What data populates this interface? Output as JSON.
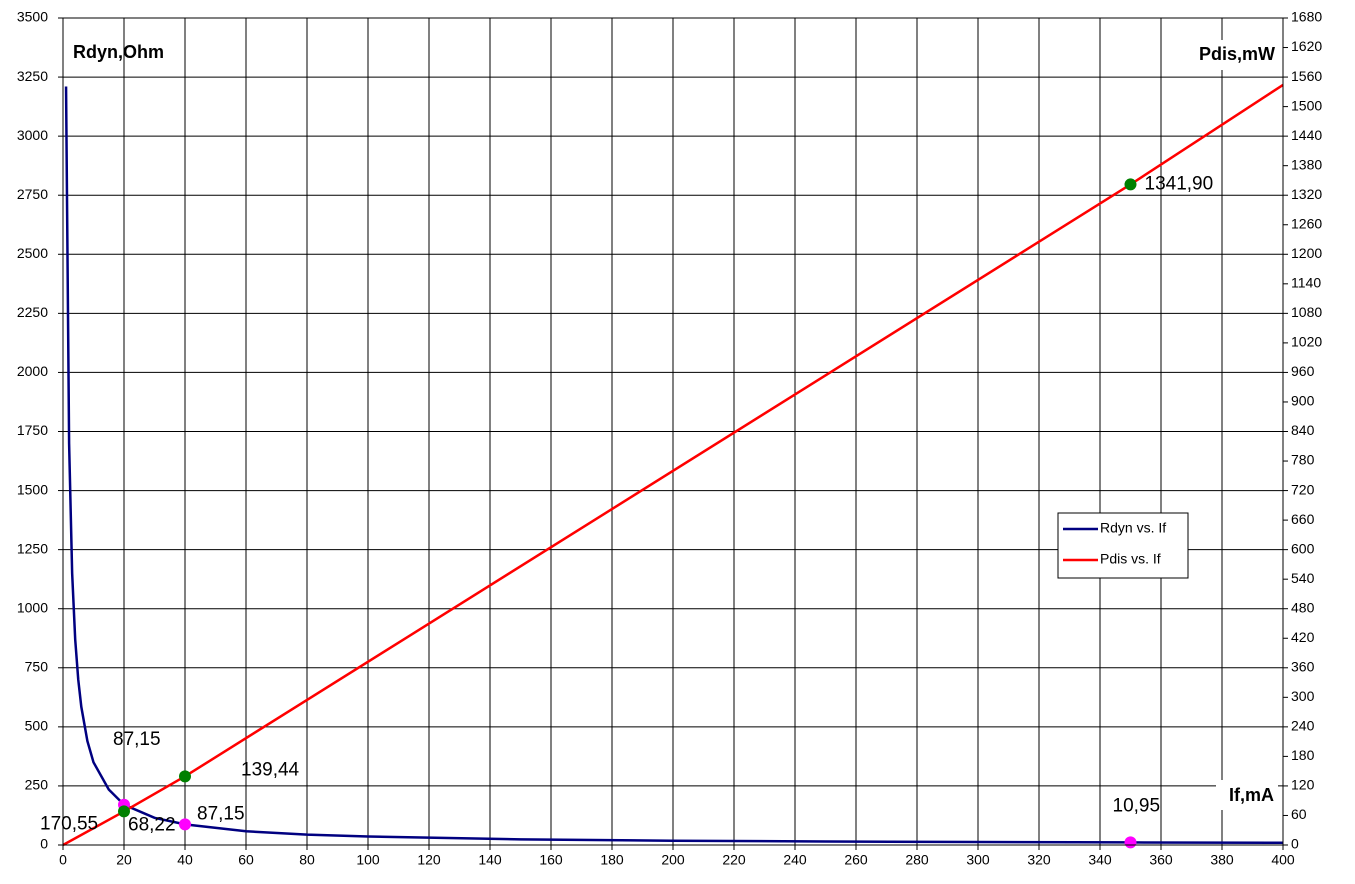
{
  "chart_data": {
    "type": "line",
    "x_label": "If,mA",
    "y_label": "Rdyn,Ohm",
    "y2_label": "Pdis,mW",
    "xlim": [
      0,
      400
    ],
    "xticks": [
      0,
      20,
      40,
      60,
      80,
      100,
      120,
      140,
      160,
      180,
      200,
      220,
      240,
      260,
      280,
      300,
      320,
      340,
      360,
      380,
      400
    ],
    "ylim": [
      0,
      3500
    ],
    "yticks": [
      0,
      250,
      500,
      750,
      1000,
      1250,
      1500,
      1750,
      2000,
      2250,
      2500,
      2750,
      3000,
      3250,
      3500
    ],
    "y2lim": [
      0,
      1680
    ],
    "y2ticks": [
      0,
      60,
      120,
      180,
      240,
      300,
      360,
      420,
      480,
      540,
      600,
      660,
      720,
      780,
      840,
      900,
      960,
      1020,
      1080,
      1140,
      1200,
      1260,
      1320,
      1380,
      1440,
      1500,
      1560,
      1620,
      1680
    ],
    "grid": true,
    "legend": "right",
    "series": [
      {
        "name": "Rdyn vs. If",
        "color": "#000080",
        "axis": "y",
        "x": [
          1,
          2,
          3,
          4,
          5,
          6,
          8,
          10,
          15,
          20,
          30,
          40,
          60,
          80,
          100,
          150,
          200,
          250,
          300,
          350,
          400
        ],
        "values": [
          3210,
          1700,
          1150,
          870,
          700,
          585,
          440,
          350,
          235,
          170.55,
          115,
          87.15,
          58,
          44,
          36,
          24,
          18,
          15,
          12.5,
          10.95,
          9.6
        ],
        "points": {
          "color": "#ff00ff",
          "x": [
            20,
            40,
            350
          ],
          "values": [
            170.55,
            87.15,
            10.95
          ],
          "value_labels": [
            "170,55",
            "87,15",
            "10,95"
          ]
        }
      },
      {
        "name": "Pdis vs. If",
        "color": "#ff0000",
        "axis": "y2",
        "x": [
          0,
          20,
          40,
          350,
          400
        ],
        "values": [
          0,
          68.22,
          139.44,
          1341.9,
          1544
        ],
        "points": {
          "color": "#008000",
          "x": [
            20,
            40,
            350
          ],
          "values": [
            68.22,
            139.44,
            1341.9
          ],
          "value_labels": [
            "68,22",
            "139,44",
            "1341,90"
          ]
        }
      }
    ],
    "annotations": [
      "87,15"
    ]
  }
}
